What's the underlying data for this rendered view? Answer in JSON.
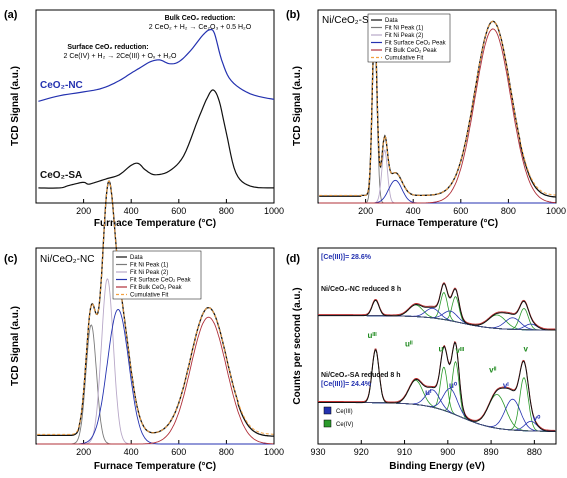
{
  "chart_data": [
    {
      "panel": "(a)",
      "type": "line",
      "xlabel": "Furnace Temperature (°C)",
      "ylabel": "TCD Signal (a.u.)",
      "xlim": [
        0,
        1000
      ],
      "xticks": [
        "200",
        "400",
        "600",
        "800",
        "1000"
      ],
      "annotations": [
        {
          "text": "Bulk CeO₂ reduction:",
          "bold": true,
          "x": 640,
          "y": 1.98
        },
        {
          "text": "2 CeO₂ + H₂ → Ce₂O₃ + 0.5 H₂O",
          "bold": false,
          "x": 640,
          "y": 1.9
        },
        {
          "text": "Surface CeO₂ reduction:",
          "bold": true,
          "x": 370,
          "y": 1.68
        },
        {
          "text": "2 Ce(IV) + H₂ → 2Ce(III) + Oₓ + H₂O",
          "bold": false,
          "x": 370,
          "y": 1.6
        }
      ],
      "series": [
        {
          "name": "CeO₂-NC",
          "color": "#2432b0",
          "x": [
            10,
            100,
            200,
            280,
            350,
            400,
            440,
            480,
            520,
            560,
            600,
            650,
            700,
            730,
            750,
            780,
            820,
            900,
            1000
          ],
          "y": [
            1.08,
            1.14,
            1.18,
            1.22,
            1.3,
            1.38,
            1.44,
            1.5,
            1.52,
            1.48,
            1.5,
            1.62,
            1.78,
            1.84,
            1.8,
            1.52,
            1.3,
            1.16,
            1.1
          ]
        },
        {
          "name": "CeO₂-SA",
          "color": "#111111",
          "x": [
            10,
            100,
            130,
            160,
            200,
            220,
            250,
            300,
            350,
            400,
            430,
            460,
            500,
            560,
            620,
            680,
            720,
            745,
            770,
            800,
            840,
            900,
            1000
          ],
          "y": [
            0.16,
            0.16,
            0.18,
            0.2,
            0.22,
            0.2,
            0.22,
            0.26,
            0.3,
            0.4,
            0.42,
            0.35,
            0.3,
            0.34,
            0.5,
            0.88,
            1.12,
            1.2,
            1.08,
            0.74,
            0.32,
            0.18,
            0.16
          ]
        }
      ]
    },
    {
      "panel": "(b)",
      "title": "Ni/CeO₂-SA",
      "type": "line",
      "xlabel": "Furnace Temperature (°C)",
      "ylabel": "TCD Signal (a.u.)",
      "xlim": [
        0,
        1000
      ],
      "xticks": [
        "200",
        "400",
        "600",
        "800",
        "1000"
      ],
      "legend": [
        "Data",
        "Fit Ni Peak (1)",
        "Fit Ni Peak (2)",
        "Fit Surface CeO₂ Peak",
        "Fit Bulk CeO₂ Peak",
        "Cumulative Fit"
      ],
      "colors": [
        "#111111",
        "#7a7a7a",
        "#b8a8c8",
        "#2432b0",
        "#b0303a",
        "#f2a040"
      ],
      "peaks": [
        {
          "name": "Fit Ni Peak (1)",
          "center": 238,
          "height": 0.9,
          "width": 10
        },
        {
          "name": "Fit Ni Peak (2)",
          "center": 280,
          "height": 0.28,
          "width": 12
        },
        {
          "name": "Fit Surface CeO₂ Peak",
          "center": 325,
          "height": 0.12,
          "width": 28
        },
        {
          "name": "Fit Bulk CeO₂ Peak",
          "center": 735,
          "height": 0.92,
          "width": 75
        }
      ],
      "baseline": 0.04
    },
    {
      "panel": "(c)",
      "title": "Ni/CeO₂-NC",
      "type": "line",
      "xlabel": "Furnace Temperature (°C)",
      "ylabel": "TCD Signal (a.u.)",
      "xlim": [
        0,
        1000
      ],
      "xticks": [
        "200",
        "400",
        "600",
        "800",
        "1000"
      ],
      "legend": [
        "Data",
        "Fit Ni Peak (1)",
        "Fit Ni Peak (2)",
        "Fit Surface CeO₂ Peak",
        "Fit Bulk CeO₂ Peak",
        "Cumulative Fit"
      ],
      "colors": [
        "#111111",
        "#7a7a7a",
        "#b8a8c8",
        "#2432b0",
        "#b0303a",
        "#f2a040"
      ],
      "peaks": [
        {
          "name": "Fit Ni Peak (1)",
          "center": 232,
          "height": 0.62,
          "width": 22
        },
        {
          "name": "Fit Ni Peak (2)",
          "center": 300,
          "height": 0.86,
          "width": 25
        },
        {
          "name": "Fit Surface CeO₂ Peak",
          "center": 345,
          "height": 0.7,
          "width": 45
        },
        {
          "name": "Fit Bulk CeO₂ Peak",
          "center": 725,
          "height": 0.66,
          "width": 75
        }
      ],
      "baseline": 0.05
    },
    {
      "panel": "(d)",
      "type": "line",
      "xlabel": "Binding Energy (eV)",
      "ylabel": "Counts per second (a.u.)",
      "xlim": [
        930,
        875
      ],
      "xticks": [
        "930",
        "920",
        "910",
        "900",
        "890",
        "880"
      ],
      "xtick_values": [
        930,
        920,
        910,
        900,
        890,
        880
      ],
      "labels": [
        {
          "text": "[Ce(III)]= 28.6%",
          "color": "#2432b0"
        },
        {
          "text": "Ni/CeO₂-NC reduced 8 h",
          "color": "#111111"
        },
        {
          "text": "Ni/CeO₂-SA reduced 8 h",
          "color": "#111111"
        },
        {
          "text": "[Ce(III)]= 24.4%",
          "color": "#2432b0"
        }
      ],
      "peak_labels": [
        {
          "text": "uᴵᴵᴵ",
          "color": "#1f8a1f"
        },
        {
          "text": "uᴵᴵ",
          "color": "#1f8a1f"
        },
        {
          "text": "u",
          "color": "#1f8a1f"
        },
        {
          "text": "vᴵᴵᴵ",
          "color": "#1f8a1f"
        },
        {
          "text": "vᴵᴵ",
          "color": "#1f8a1f"
        },
        {
          "text": "v",
          "color": "#1f8a1f"
        },
        {
          "text": "uᴵ",
          "color": "#2432b0"
        },
        {
          "text": "u⁰",
          "color": "#2432b0"
        },
        {
          "text": "vᴵ",
          "color": "#2432b0"
        },
        {
          "text": "v⁰",
          "color": "#2432b0"
        }
      ],
      "legend": [
        "Ce(III)",
        "Ce(IV)"
      ],
      "legend_colors": [
        "#2432b0",
        "#2b9a2b"
      ],
      "spectra": [
        {
          "name": "Ni/CeO₂-NC reduced 8 h",
          "components_ceIV": [
            [
              916.7,
              0.16,
              0.8
            ],
            [
              907.4,
              0.12,
              1.6
            ],
            [
              900.9,
              0.28,
              0.8
            ],
            [
              898.2,
              0.26,
              0.8
            ],
            [
              888.6,
              0.14,
              2.0
            ],
            [
              882.4,
              0.22,
              1.0
            ]
          ],
          "components_ceIII": [
            [
              903.5,
              0.1,
              1.6
            ],
            [
              899.4,
              0.1,
              1.6
            ],
            [
              885.0,
              0.12,
              1.8
            ],
            [
              880.8,
              0.06,
              1.4
            ]
          ],
          "background": [
            0.05,
            0.2
          ]
        },
        {
          "name": "Ni/CeO₂-SA reduced 8 h",
          "components_ceIV": [
            [
              916.7,
              0.55,
              0.8
            ],
            [
              907.4,
              0.25,
              1.6
            ],
            [
              900.9,
              0.45,
              0.8
            ],
            [
              898.2,
              0.55,
              0.8
            ],
            [
              888.6,
              0.35,
              2.0
            ],
            [
              882.4,
              0.55,
              1.0
            ]
          ],
          "components_ceIII": [
            [
              903.5,
              0.18,
              1.6
            ],
            [
              899.4,
              0.25,
              1.6
            ],
            [
              885.0,
              0.32,
              1.8
            ],
            [
              880.8,
              0.1,
              1.4
            ]
          ],
          "background": [
            0.05,
            0.35
          ]
        }
      ]
    }
  ]
}
